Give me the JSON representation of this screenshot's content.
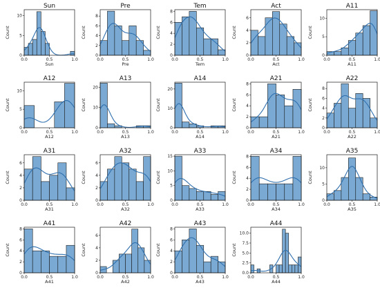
{
  "chart_data": [
    {
      "type": "histogram",
      "title": "Sun",
      "xlabel": "Sun",
      "ylabel": "Count",
      "xlim": [
        0,
        1
      ],
      "ylim": [
        0,
        11.5
      ],
      "xticks": [
        "0.0",
        "0.5",
        "1.0"
      ],
      "yticks": [
        0,
        5,
        10
      ],
      "bins": {
        "start": 0,
        "width": 0.0833
      },
      "values": [
        2,
        3,
        4,
        11,
        6,
        3,
        0,
        0,
        0,
        0,
        0,
        1
      ]
    },
    {
      "type": "histogram",
      "title": "Pre",
      "xlabel": "Pre",
      "ylabel": "Count",
      "xlim": [
        0,
        1
      ],
      "ylim": [
        0,
        9.3
      ],
      "xticks": [
        "0.0",
        "0.5",
        "1.0"
      ],
      "yticks": [
        0,
        2,
        4,
        6,
        8
      ],
      "bins": {
        "start": 0,
        "width": 0.143
      },
      "values": [
        3,
        9,
        6,
        3,
        6,
        3,
        1
      ]
    },
    {
      "type": "histogram",
      "title": "Tem",
      "xlabel": "Tem",
      "ylabel": "Count",
      "xlim": [
        0,
        1
      ],
      "ylim": [
        0,
        8.3
      ],
      "xticks": [
        "0.0",
        "0.5",
        "1.0"
      ],
      "yticks": [
        0,
        2,
        4,
        6,
        8
      ],
      "bins": {
        "start": 0,
        "width": 0.143
      },
      "values": [
        6,
        7,
        8,
        5,
        3,
        3,
        1
      ]
    },
    {
      "type": "histogram",
      "title": "Act",
      "xlabel": "Act",
      "ylabel": "Count",
      "xlim": [
        0,
        1
      ],
      "ylim": [
        0,
        7.3
      ],
      "xticks": [
        "0.0",
        "0.5",
        "1.0"
      ],
      "yticks": [
        0,
        2,
        4,
        6
      ],
      "bins": {
        "start": 0,
        "width": 0.143
      },
      "values": [
        4,
        3,
        6,
        7,
        5,
        3,
        2
      ]
    },
    {
      "type": "histogram",
      "title": "A11",
      "xlabel": "A11",
      "ylabel": "Count",
      "xlim": [
        0,
        1
      ],
      "ylim": [
        0,
        12.3
      ],
      "xticks": [
        "0.0",
        "0.5",
        "1.0"
      ],
      "yticks": [
        0,
        5,
        10
      ],
      "bins": {
        "start": 0,
        "width": 0.143
      },
      "values": [
        1,
        1,
        2,
        4,
        6,
        8,
        12
      ]
    },
    {
      "type": "histogram",
      "title": "A12",
      "xlabel": "A12",
      "ylabel": "Count",
      "xlim": [
        0,
        1
      ],
      "ylim": [
        0,
        12.3
      ],
      "xticks": [
        "0.0",
        "0.5",
        "1.0"
      ],
      "yticks": [
        0,
        5,
        10
      ],
      "bins": {
        "start": 0,
        "width": 0.2
      },
      "values": [
        6,
        0,
        0,
        7,
        12
      ]
    },
    {
      "type": "histogram",
      "title": "A13",
      "xlabel": "A13",
      "ylabel": "Count",
      "xlim": [
        0,
        1
      ],
      "ylim": [
        0,
        22.5
      ],
      "xticks": [
        "0.0",
        "0.5",
        "1.0"
      ],
      "yticks": [
        0,
        10,
        20
      ],
      "bins": {
        "start": 0,
        "width": 0.143
      },
      "values": [
        22,
        2,
        1,
        0,
        0,
        1,
        1
      ]
    },
    {
      "type": "histogram",
      "title": "A14",
      "xlabel": "A14",
      "ylabel": "Count",
      "xlim": [
        0,
        1
      ],
      "ylim": [
        0,
        23.5
      ],
      "xticks": [
        "0.0",
        "0.5",
        "1.0"
      ],
      "yticks": [
        0,
        10,
        20
      ],
      "bins": {
        "start": 0,
        "width": 0.143
      },
      "values": [
        23,
        3,
        2,
        1,
        0,
        1,
        1
      ]
    },
    {
      "type": "histogram",
      "title": "A21",
      "xlabel": "A21",
      "ylabel": "Count",
      "xlim": [
        0,
        1
      ],
      "ylim": [
        0,
        8.3
      ],
      "xticks": [
        "0.0",
        "0.5",
        "1.0"
      ],
      "yticks": [
        0,
        2,
        4,
        6,
        8
      ],
      "bins": {
        "start": 0,
        "width": 0.167
      },
      "values": [
        2,
        2,
        8,
        6,
        4,
        7
      ]
    },
    {
      "type": "histogram",
      "title": "A22",
      "xlabel": "A22",
      "ylabel": "Count",
      "xlim": [
        0,
        1
      ],
      "ylim": [
        0,
        9.3
      ],
      "xticks": [
        "0.0",
        "0.5",
        "1.0"
      ],
      "yticks": [
        0,
        2,
        4,
        6,
        8
      ],
      "bins": {
        "start": 0,
        "width": 0.143
      },
      "values": [
        3,
        5,
        9,
        4,
        7,
        6,
        2
      ]
    },
    {
      "type": "histogram",
      "title": "A31",
      "xlabel": "A31",
      "ylabel": "Count",
      "xlim": [
        0,
        1
      ],
      "ylim": [
        0,
        7.3
      ],
      "xticks": [
        "0.0",
        "0.5",
        "1.0"
      ],
      "yticks": [
        0,
        2,
        4,
        6
      ],
      "bins": {
        "start": 0,
        "width": 0.167
      },
      "values": [
        5,
        7,
        3,
        4,
        6,
        2
      ]
    },
    {
      "type": "histogram",
      "title": "A32",
      "xlabel": "A32",
      "ylabel": "Count",
      "xlim": [
        0,
        1
      ],
      "ylim": [
        0,
        7.3
      ],
      "xticks": [
        "0.0",
        "0.5",
        "1.0"
      ],
      "yticks": [
        0,
        2,
        4,
        6
      ],
      "bins": {
        "start": 0,
        "width": 0.143
      },
      "values": [
        3,
        5,
        7,
        6,
        5,
        3,
        7
      ]
    },
    {
      "type": "histogram",
      "title": "A33",
      "xlabel": "A33",
      "ylabel": "Count",
      "xlim": [
        0,
        1
      ],
      "ylim": [
        0,
        15.5
      ],
      "xticks": [
        "0.0",
        "0.5",
        "1.0"
      ],
      "yticks": [
        0,
        5,
        10,
        15
      ],
      "bins": {
        "start": 0,
        "width": 0.143
      },
      "values": [
        15,
        5,
        4,
        3,
        3,
        2,
        3
      ]
    },
    {
      "type": "histogram",
      "title": "A34",
      "xlabel": "A34",
      "ylabel": "Count",
      "xlim": [
        0,
        1
      ],
      "ylim": [
        0,
        8.3
      ],
      "xticks": [
        "0.0",
        "0.5",
        "1.0"
      ],
      "yticks": [
        0,
        2,
        4,
        6,
        8
      ],
      "bins": {
        "start": 0,
        "width": 0.167
      },
      "values": [
        8,
        3,
        3,
        3,
        3,
        8
      ]
    },
    {
      "type": "histogram",
      "title": "A35",
      "xlabel": "A35",
      "ylabel": "Count",
      "xlim": [
        0,
        1
      ],
      "ylim": [
        0,
        14
      ],
      "xticks": [
        "0.0",
        "0.5",
        "1.0"
      ],
      "yticks": [
        0,
        5,
        10
      ],
      "bins": {
        "start": 0,
        "width": 0.143
      },
      "values": [
        2,
        3,
        7,
        13,
        7,
        2,
        1
      ]
    },
    {
      "type": "histogram",
      "title": "A41",
      "xlabel": "A41",
      "ylabel": "Count",
      "xlim": [
        0,
        1
      ],
      "ylim": [
        0,
        8.3
      ],
      "xticks": [
        "0.0",
        "0.5",
        "1.0"
      ],
      "yticks": [
        0,
        2,
        4,
        6,
        8
      ],
      "bins": {
        "start": 0,
        "width": 0.167
      },
      "values": [
        8,
        4,
        4,
        3,
        3,
        5
      ]
    },
    {
      "type": "histogram",
      "title": "A42",
      "xlabel": "A42",
      "ylabel": "Count",
      "xlim": [
        0,
        1
      ],
      "ylim": [
        0,
        7.3
      ],
      "xticks": [
        "0.0",
        "0.5",
        "1.0"
      ],
      "yticks": [
        0,
        2,
        4,
        6
      ],
      "bins": {
        "start": 0,
        "width": 0.125
      },
      "values": [
        1,
        0,
        2,
        3,
        3,
        7,
        4,
        2
      ]
    },
    {
      "type": "histogram",
      "title": "A43",
      "xlabel": "A43",
      "ylabel": "Count",
      "xlim": [
        0,
        1
      ],
      "ylim": [
        0,
        8.3
      ],
      "xticks": [
        "0.0",
        "0.5",
        "1.0"
      ],
      "yticks": [
        0,
        2,
        4,
        6,
        8
      ],
      "bins": {
        "start": 0,
        "width": 0.143
      },
      "values": [
        4,
        6,
        8,
        5,
        2,
        3,
        2
      ]
    },
    {
      "type": "histogram",
      "title": "A44",
      "xlabel": "A44",
      "ylabel": "Count",
      "xlim": [
        0,
        1
      ],
      "ylim": [
        0,
        11.5
      ],
      "xticks": [
        "0.0",
        "0.5",
        "1.0"
      ],
      "yticks": [
        "0.0",
        "2.5",
        "5.0",
        "7.5",
        "10.0"
      ],
      "ytick_values": [
        0,
        2.5,
        5,
        7.5,
        10
      ],
      "bins": {
        "start": 0,
        "width": 0.0625
      },
      "values": [
        2,
        0,
        1,
        0,
        0,
        0,
        2,
        0,
        2,
        2,
        11,
        10,
        2,
        2,
        2,
        4
      ]
    }
  ]
}
